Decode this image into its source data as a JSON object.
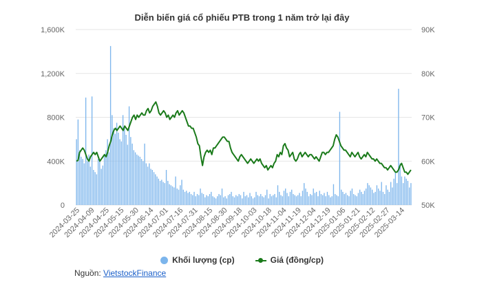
{
  "title": "Diễn biến giá cổ phiếu PTB trong 1 năm trở lại đây",
  "legend": {
    "volume_label": "Khối lượng (cp)",
    "price_label": "Giá (đồng/cp)"
  },
  "source": {
    "prefix": "Nguồn: ",
    "link_text": "VietstockFinance"
  },
  "colors": {
    "volume": "#7cb5ec",
    "price": "#1a7a1a",
    "grid": "#e6e6e6"
  },
  "chart_data": {
    "type": "bar+line",
    "left_axis": {
      "min": 0,
      "max": 1600000,
      "ticks": [
        0,
        400000,
        800000,
        1200000,
        1600000
      ],
      "tick_labels": [
        "0",
        "400K",
        "800K",
        "1,200K",
        "1,600K"
      ]
    },
    "right_axis": {
      "min": 50000,
      "max": 90000,
      "ticks": [
        50000,
        60000,
        70000,
        80000,
        90000
      ],
      "tick_labels": [
        "50K",
        "60K",
        "70K",
        "80K",
        "90K"
      ]
    },
    "x_tick_labels": [
      "2024-03-25",
      "2024-04-09",
      "2024-04-25",
      "2024-05-15",
      "2024-05-30",
      "2024-06-14",
      "2024-07-01",
      "2024-07-16",
      "2024-07-31",
      "2024-08-15",
      "2024-08-30",
      "2024-09-18",
      "2024-10-03",
      "2024-10-18",
      "2024-11-04",
      "2024-11-19",
      "2024-12-04",
      "2024-12-19",
      "2025-01-06",
      "2025-01-21",
      "2025-02-12",
      "2025-02-27",
      "2025-03-14"
    ],
    "series": [
      {
        "name": "Khối lượng (cp)",
        "kind": "bar",
        "axis": "left",
        "values": [
          600000,
          780000,
          500000,
          440000,
          420000,
          380000,
          980000,
          400000,
          460000,
          350000,
          990000,
          320000,
          300000,
          280000,
          420000,
          400000,
          330000,
          360000,
          450000,
          500000,
          600000,
          480000,
          1450000,
          820000,
          700000,
          650000,
          750000,
          660000,
          600000,
          580000,
          820000,
          700000,
          640000,
          550000,
          900000,
          620000,
          560000,
          500000,
          480000,
          460000,
          450000,
          440000,
          420000,
          400000,
          560000,
          380000,
          350000,
          380000,
          330000,
          320000,
          300000,
          280000,
          260000,
          240000,
          220000,
          230000,
          210000,
          200000,
          320000,
          220000,
          190000,
          180000,
          170000,
          160000,
          260000,
          150000,
          140000,
          180000,
          230000,
          140000,
          120000,
          130000,
          110000,
          120000,
          100000,
          90000,
          120000,
          80000,
          100000,
          90000,
          150000,
          110000,
          100000,
          70000,
          90000,
          80000,
          100000,
          120000,
          80000,
          70000,
          60000,
          80000,
          100000,
          90000,
          150000,
          70000,
          80000,
          60000,
          90000,
          100000,
          120000,
          80000,
          70000,
          90000,
          80000,
          100000,
          90000,
          60000,
          120000,
          80000,
          90000,
          70000,
          110000,
          80000,
          60000,
          70000,
          120000,
          90000,
          80000,
          100000,
          80000,
          70000,
          90000,
          140000,
          60000,
          100000,
          80000,
          90000,
          100000,
          70000,
          180000,
          120000,
          90000,
          80000,
          130000,
          150000,
          110000,
          80000,
          120000,
          140000,
          100000,
          90000,
          80000,
          90000,
          110000,
          80000,
          130000,
          200000,
          150000,
          120000,
          80000,
          100000,
          90000,
          150000,
          110000,
          120000,
          80000,
          130000,
          100000,
          90000,
          110000,
          80000,
          120000,
          90000,
          70000,
          80000,
          190000,
          100000,
          90000,
          80000,
          850000,
          140000,
          120000,
          100000,
          110000,
          90000,
          80000,
          130000,
          150000,
          100000,
          90000,
          80000,
          110000,
          140000,
          120000,
          100000,
          130000,
          150000,
          200000,
          180000,
          160000,
          140000,
          110000,
          120000,
          180000,
          150000,
          130000,
          210000,
          120000,
          100000,
          180000,
          140000,
          120000,
          210000,
          160000,
          240000,
          300000,
          200000,
          1060000,
          380000,
          260000,
          200000,
          260000,
          240000,
          220000,
          160000,
          200000
        ]
      },
      {
        "name": "Giá (đồng/cp)",
        "kind": "line",
        "axis": "right",
        "values": [
          60000,
          60200,
          62000,
          62500,
          63000,
          62500,
          61500,
          60500,
          60000,
          61000,
          61500,
          62000,
          61500,
          62000,
          61000,
          60000,
          60500,
          61000,
          61500,
          61000,
          62000,
          63500,
          64500,
          66000,
          67000,
          67500,
          67000,
          67500,
          68000,
          67500,
          67000,
          68000,
          67500,
          67000,
          68000,
          69000,
          70000,
          70500,
          69500,
          70500,
          70000,
          70500,
          71000,
          70500,
          70500,
          71500,
          72000,
          71000,
          71500,
          72500,
          73000,
          73500,
          72500,
          71000,
          70500,
          71000,
          71500,
          71000,
          70000,
          70500,
          69500,
          70000,
          70500,
          70000,
          71000,
          71500,
          70500,
          71000,
          71500,
          71000,
          70000,
          69000,
          68000,
          68000,
          67500,
          67500,
          66500,
          65500,
          64000,
          63500,
          61000,
          59000,
          61000,
          62000,
          62500,
          62000,
          62500,
          61500,
          63000,
          63000,
          63500,
          64000,
          64500,
          65000,
          65500,
          65500,
          65000,
          64500,
          64500,
          63000,
          62000,
          61500,
          61000,
          60500,
          60000,
          61000,
          61500,
          61000,
          60500,
          60000,
          59500,
          60000,
          60500,
          60000,
          59500,
          60000,
          60500,
          60000,
          60500,
          59500,
          59000,
          58500,
          59000,
          58000,
          58500,
          59000,
          58500,
          59500,
          60000,
          61500,
          61000,
          62000,
          61500,
          63500,
          64000,
          63000,
          62500,
          61000,
          61500,
          62000,
          60500,
          60000,
          60500,
          61500,
          62000,
          61000,
          61500,
          62000,
          61500,
          61000,
          61500,
          61500,
          61000,
          60500,
          61000,
          60500,
          60000,
          61000,
          62000,
          62000,
          61500,
          62000,
          62000,
          62500,
          63000,
          63500,
          65000,
          66000,
          65500,
          64500,
          63500,
          63000,
          62500,
          62500,
          62000,
          61500,
          61000,
          62000,
          61500,
          61000,
          61500,
          62000,
          61000,
          60500,
          61000,
          61500,
          61000,
          62000,
          61500,
          61000,
          60500,
          60500,
          60000,
          60500,
          60000,
          59500,
          59500,
          59000,
          58500,
          58500,
          58000,
          58500,
          59000,
          58500,
          58000,
          57500,
          57500,
          58000,
          59000,
          59500,
          58500,
          57500,
          57500,
          57000,
          57500,
          58000
        ]
      }
    ],
    "grid": true,
    "legend_position": "bottom-center"
  }
}
